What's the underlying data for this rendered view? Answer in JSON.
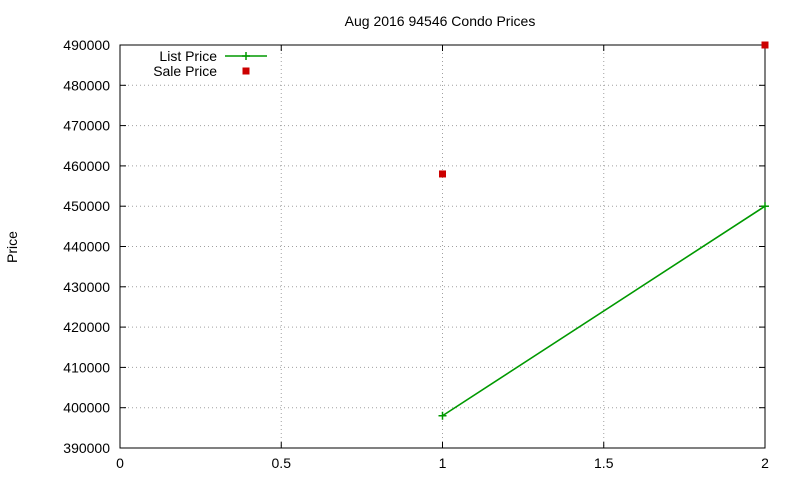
{
  "chart_data": {
    "type": "line",
    "title": "Aug 2016 94546 Condo Prices",
    "xlabel": "",
    "ylabel": "Price",
    "xlim": [
      0,
      2
    ],
    "ylim": [
      390000,
      490000
    ],
    "x_ticks": [
      0,
      0.5,
      1,
      1.5,
      2
    ],
    "x_tick_labels": [
      "0",
      "0.5",
      "1",
      "1.5",
      "2"
    ],
    "y_ticks": [
      390000,
      400000,
      410000,
      420000,
      430000,
      440000,
      450000,
      460000,
      470000,
      480000,
      490000
    ],
    "y_tick_labels": [
      "390000",
      "400000",
      "410000",
      "420000",
      "430000",
      "440000",
      "450000",
      "460000",
      "470000",
      "480000",
      "490000"
    ],
    "grid": true,
    "legend_position": "top-left",
    "series": [
      {
        "name": "List Price",
        "style": "linespoints",
        "marker": "plus",
        "color": "#009900",
        "points": [
          [
            1,
            398000
          ],
          [
            2,
            450000
          ]
        ]
      },
      {
        "name": "Sale Price",
        "style": "points",
        "marker": "square",
        "color": "#cc0000",
        "points": [
          [
            1,
            458000
          ],
          [
            2,
            490000
          ]
        ]
      }
    ]
  }
}
